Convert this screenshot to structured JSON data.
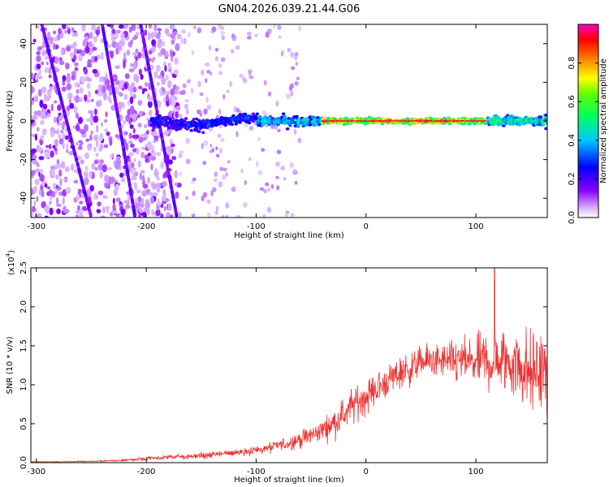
{
  "title": "GN04.2026.039.21.44.G06",
  "colors": {
    "snr_line": "#ee3333",
    "axis": "#000000",
    "background": "#ffffff"
  },
  "chart_data": [
    {
      "type": "heatmap",
      "name": "spectrogram",
      "xlabel": "Height of straight line (km)",
      "ylabel": "Frequency (Hz)",
      "xlim": [
        -305,
        165
      ],
      "ylim": [
        -50,
        50
      ],
      "x_ticks": [
        -300,
        -200,
        -100,
        0,
        100
      ],
      "y_ticks": [
        -40,
        -20,
        0,
        20,
        40
      ],
      "x_tick_labels": [
        "-300",
        "-200",
        "-100",
        "0",
        "100"
      ],
      "y_tick_labels": [
        "-40",
        "-20",
        "0",
        "20",
        "40"
      ],
      "colorbar": {
        "label": "Normalized spectral amplitude",
        "range": [
          0,
          1
        ],
        "ticks": [
          0.0,
          0.2,
          0.4,
          0.6,
          0.8
        ],
        "tick_labels": [
          "0.0",
          "0.2",
          "0.4",
          "0.6",
          "0.8"
        ],
        "colors": [
          "#ffffff",
          "#a000ff",
          "#0000ff",
          "#00c8ff",
          "#00ff60",
          "#ffff00",
          "#ff8000",
          "#ff0000",
          "#ff00c0"
        ]
      },
      "annotation": "Main signal band centered near 0 Hz from about -190 km to 165 km; strongest (red) from about -30 km to 110 km; diffuse low-amplitude purple noise below -180 km"
    },
    {
      "type": "line",
      "name": "snr",
      "xlabel": "Height of straight line (km)",
      "ylabel": "SNR (10 * v/v)",
      "y_multiplier": "(x10",
      "y_multiplier_exp": "4",
      "y_multiplier_close": ")",
      "xlim": [
        -305,
        165
      ],
      "ylim": [
        0,
        2.5
      ],
      "x_ticks": [
        -300,
        -200,
        -100,
        0,
        100
      ],
      "y_ticks": [
        0.0,
        0.5,
        1.0,
        1.5,
        2.0,
        2.5
      ],
      "x_tick_labels": [
        "-300",
        "-200",
        "-100",
        "0",
        "100"
      ],
      "y_tick_labels": [
        "0.0",
        "0.5",
        "1.0",
        "1.5",
        "2.0",
        "2.5"
      ],
      "series": [
        {
          "name": "SNR",
          "x": [
            -305,
            -280,
            -260,
            -240,
            -220,
            -200,
            -180,
            -160,
            -140,
            -120,
            -100,
            -90,
            -80,
            -70,
            -60,
            -50,
            -40,
            -30,
            -20,
            -15,
            -10,
            -5,
            0,
            10,
            20,
            30,
            40,
            50,
            60,
            70,
            80,
            90,
            100,
            110,
            120,
            130,
            140,
            150,
            160,
            165
          ],
          "mean": [
            0.01,
            0.01,
            0.015,
            0.02,
            0.03,
            0.05,
            0.07,
            0.08,
            0.1,
            0.13,
            0.16,
            0.18,
            0.22,
            0.25,
            0.3,
            0.35,
            0.42,
            0.5,
            0.62,
            0.7,
            0.75,
            0.8,
            0.85,
            0.95,
            1.05,
            1.15,
            1.2,
            1.3,
            1.3,
            1.3,
            1.3,
            1.3,
            1.28,
            1.3,
            1.3,
            1.3,
            1.25,
            1.15,
            1.2,
            1.1
          ],
          "spread": [
            0.01,
            0.01,
            0.01,
            0.015,
            0.02,
            0.03,
            0.04,
            0.05,
            0.06,
            0.07,
            0.09,
            0.1,
            0.12,
            0.13,
            0.15,
            0.17,
            0.2,
            0.24,
            0.3,
            0.32,
            0.3,
            0.3,
            0.3,
            0.3,
            0.3,
            0.3,
            0.3,
            0.3,
            0.3,
            0.3,
            0.35,
            0.4,
            0.45,
            0.6,
            0.55,
            0.65,
            0.7,
            0.75,
            0.8,
            0.8
          ]
        }
      ],
      "peak": {
        "x": 117,
        "y": 2.5
      }
    }
  ]
}
